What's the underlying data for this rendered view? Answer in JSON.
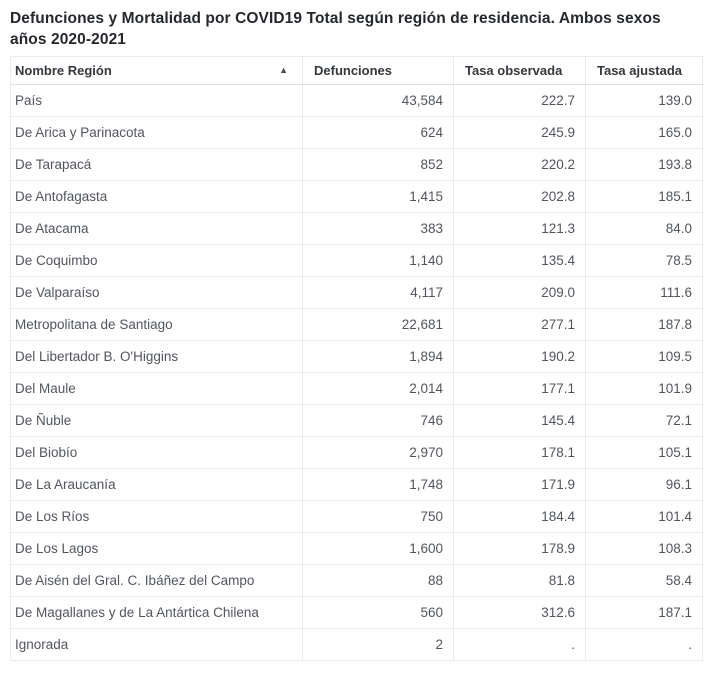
{
  "title": {
    "line1": "Defunciones y Mortalidad por COVID19 Total según región de residencia. Ambos sexos",
    "line2": "años 2020-2021"
  },
  "table": {
    "sort_icon": "▲",
    "sort_state": "ascending",
    "columns": [
      {
        "label": "Nombre Región"
      },
      {
        "label": "Defunciones"
      },
      {
        "label": "Tasa observada"
      },
      {
        "label": "Tasa ajustada"
      }
    ],
    "rows": [
      {
        "region": "País",
        "defunciones": "43,584",
        "tasa_observada": "222.7",
        "tasa_ajustada": "139.0"
      },
      {
        "region": "De Arica y Parinacota",
        "defunciones": "624",
        "tasa_observada": "245.9",
        "tasa_ajustada": "165.0"
      },
      {
        "region": "De Tarapacá",
        "defunciones": "852",
        "tasa_observada": "220.2",
        "tasa_ajustada": "193.8"
      },
      {
        "region": "De Antofagasta",
        "defunciones": "1,415",
        "tasa_observada": "202.8",
        "tasa_ajustada": "185.1"
      },
      {
        "region": "De Atacama",
        "defunciones": "383",
        "tasa_observada": "121.3",
        "tasa_ajustada": "84.0"
      },
      {
        "region": "De Coquimbo",
        "defunciones": "1,140",
        "tasa_observada": "135.4",
        "tasa_ajustada": "78.5"
      },
      {
        "region": "De Valparaíso",
        "defunciones": "4,117",
        "tasa_observada": "209.0",
        "tasa_ajustada": "111.6"
      },
      {
        "region": "Metropolitana de Santiago",
        "defunciones": "22,681",
        "tasa_observada": "277.1",
        "tasa_ajustada": "187.8"
      },
      {
        "region": "Del Libertador B. O'Higgins",
        "defunciones": "1,894",
        "tasa_observada": "190.2",
        "tasa_ajustada": "109.5"
      },
      {
        "region": "Del Maule",
        "defunciones": "2,014",
        "tasa_observada": "177.1",
        "tasa_ajustada": "101.9"
      },
      {
        "region": "De Ñuble",
        "defunciones": "746",
        "tasa_observada": "145.4",
        "tasa_ajustada": "72.1"
      },
      {
        "region": "Del Biobío",
        "defunciones": "2,970",
        "tasa_observada": "178.1",
        "tasa_ajustada": "105.1"
      },
      {
        "region": "De La Araucanía",
        "defunciones": "1,748",
        "tasa_observada": "171.9",
        "tasa_ajustada": "96.1"
      },
      {
        "region": "De Los Ríos",
        "defunciones": "750",
        "tasa_observada": "184.4",
        "tasa_ajustada": "101.4"
      },
      {
        "region": "De Los Lagos",
        "defunciones": "1,600",
        "tasa_observada": "178.9",
        "tasa_ajustada": "108.3"
      },
      {
        "region": "De Aisén del Gral. C. Ibáñez del Campo",
        "defunciones": "88",
        "tasa_observada": "81.8",
        "tasa_ajustada": "58.4"
      },
      {
        "region": "De Magallanes y de La Antártica Chilena",
        "defunciones": "560",
        "tasa_observada": "312.6",
        "tasa_ajustada": "187.1"
      },
      {
        "region": "Ignorada",
        "defunciones": "2",
        "tasa_observada": ".",
        "tasa_ajustada": "."
      }
    ]
  },
  "colors": {
    "title_text": "#24282c",
    "header_text": "#33383d",
    "cell_text": "#51565c",
    "border": "#e9eaeb",
    "header_border": "#dcdedf",
    "background": "#ffffff"
  }
}
